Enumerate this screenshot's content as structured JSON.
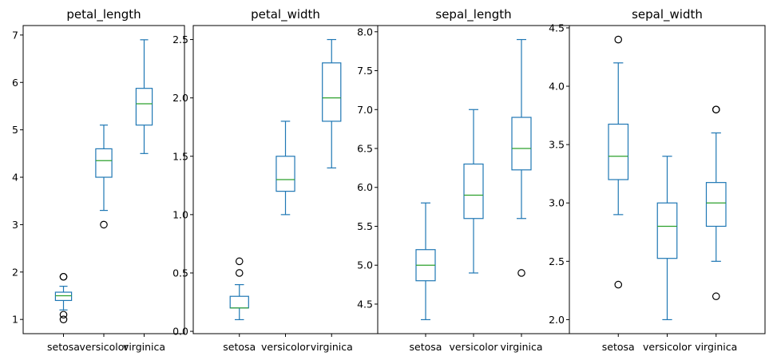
{
  "chart_data": [
    {
      "type": "box",
      "title": "petal_length",
      "categories": [
        "setosa",
        "versicolor",
        "virginica"
      ],
      "ylim": [
        0.7,
        7.2
      ],
      "yticks": [
        1,
        2,
        3,
        4,
        5,
        6,
        7
      ],
      "ytick_labels": [
        "1",
        "2",
        "3",
        "4",
        "5",
        "6",
        "7"
      ],
      "boxes": [
        {
          "whislo": 1.2,
          "q1": 1.4,
          "med": 1.5,
          "q3": 1.575,
          "whishi": 1.7,
          "fliers": [
            1.0,
            1.1,
            1.9,
            1.9
          ]
        },
        {
          "whislo": 3.3,
          "q1": 4.0,
          "med": 4.35,
          "q3": 4.6,
          "whishi": 5.1,
          "fliers": [
            3.0
          ]
        },
        {
          "whislo": 4.5,
          "q1": 5.1,
          "med": 5.55,
          "q3": 5.875,
          "whishi": 6.9,
          "fliers": []
        }
      ]
    },
    {
      "type": "box",
      "title": "petal_width",
      "categories": [
        "setosa",
        "versicolor",
        "virginica"
      ],
      "ylim": [
        -0.02,
        2.62
      ],
      "yticks": [
        0.0,
        0.5,
        1.0,
        1.5,
        2.0,
        2.5
      ],
      "ytick_labels": [
        "0.0",
        "0.5",
        "1.0",
        "1.5",
        "2.0",
        "2.5"
      ],
      "boxes": [
        {
          "whislo": 0.1,
          "q1": 0.2,
          "med": 0.2,
          "q3": 0.3,
          "whishi": 0.4,
          "fliers": [
            0.5,
            0.6
          ]
        },
        {
          "whislo": 1.0,
          "q1": 1.2,
          "med": 1.3,
          "q3": 1.5,
          "whishi": 1.8,
          "fliers": []
        },
        {
          "whislo": 1.4,
          "q1": 1.8,
          "med": 2.0,
          "q3": 2.3,
          "whishi": 2.5,
          "fliers": []
        }
      ]
    },
    {
      "type": "box",
      "title": "sepal_length",
      "categories": [
        "setosa",
        "versicolor",
        "virginica"
      ],
      "ylim": [
        4.12,
        8.08
      ],
      "yticks": [
        4.5,
        5.0,
        5.5,
        6.0,
        6.5,
        7.0,
        7.5,
        8.0
      ],
      "ytick_labels": [
        "4.5",
        "5.0",
        "5.5",
        "6.0",
        "6.5",
        "7.0",
        "7.5",
        "8.0"
      ],
      "boxes": [
        {
          "whislo": 4.3,
          "q1": 4.8,
          "med": 5.0,
          "q3": 5.2,
          "whishi": 5.8,
          "fliers": []
        },
        {
          "whislo": 4.9,
          "q1": 5.6,
          "med": 5.9,
          "q3": 6.3,
          "whishi": 7.0,
          "fliers": []
        },
        {
          "whislo": 5.6,
          "q1": 6.225,
          "med": 6.5,
          "q3": 6.9,
          "whishi": 7.9,
          "fliers": [
            4.9
          ]
        }
      ]
    },
    {
      "type": "box",
      "title": "sepal_width",
      "categories": [
        "setosa",
        "versicolor",
        "virginica"
      ],
      "ylim": [
        1.88,
        4.52
      ],
      "yticks": [
        2.0,
        2.5,
        3.0,
        3.5,
        4.0,
        4.5
      ],
      "ytick_labels": [
        "2.0",
        "2.5",
        "3.0",
        "3.5",
        "4.0",
        "4.5"
      ],
      "boxes": [
        {
          "whislo": 2.9,
          "q1": 3.2,
          "med": 3.4,
          "q3": 3.675,
          "whishi": 4.2,
          "fliers": [
            2.3,
            4.4
          ]
        },
        {
          "whislo": 2.0,
          "q1": 2.525,
          "med": 2.8,
          "q3": 3.0,
          "whishi": 3.4,
          "fliers": []
        },
        {
          "whislo": 2.5,
          "q1": 2.8,
          "med": 3.0,
          "q3": 3.175,
          "whishi": 3.6,
          "fliers": [
            2.2,
            3.8,
            3.8
          ]
        }
      ]
    }
  ],
  "colors": {
    "box": "#1f77b4",
    "median": "#2ca02c",
    "flier": "#000000",
    "axes": "#000000"
  }
}
